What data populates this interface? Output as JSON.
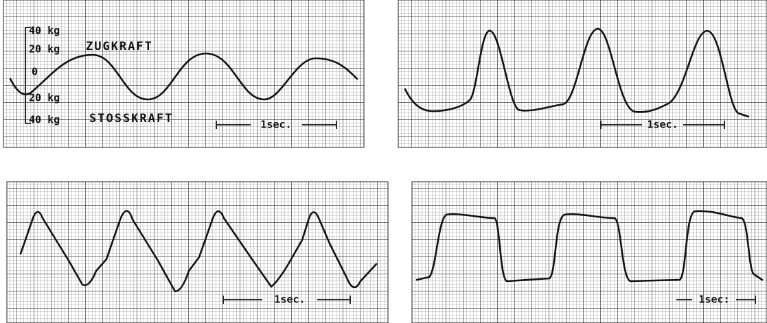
{
  "panels": [
    {
      "scale_labels": [
        "40 kg",
        "20 kg",
        "0",
        "20 kg",
        "40 kg"
      ],
      "pull_label": "ZUGKRAFT",
      "push_label": "STOSSKRAFT",
      "time_label": "1sec."
    },
    {
      "time_label": "1sec."
    },
    {
      "time_label": "1sec."
    },
    {
      "time_label": "1sec:"
    }
  ]
}
